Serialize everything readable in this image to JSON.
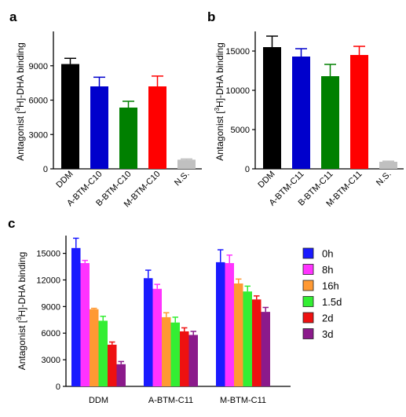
{
  "chart_data": [
    {
      "panel": "a",
      "type": "bar",
      "ylabel": "Antagonist [3H]-DHA binding",
      "ylim": [
        0,
        12000
      ],
      "yticks": [
        0,
        3000,
        6000,
        9000
      ],
      "categories": [
        "DDM",
        "A-BTM-C10",
        "B-BTM-C10",
        "M-BTM-C10",
        "N.S."
      ],
      "values": [
        9150,
        7200,
        5350,
        7200,
        800
      ],
      "errors": [
        500,
        800,
        550,
        900,
        60
      ],
      "colors": [
        "#000000",
        "#0000cc",
        "#008000",
        "#ff0000",
        "#c0c0c0"
      ]
    },
    {
      "panel": "b",
      "type": "bar",
      "ylabel": "Antagonist [3H]-DHA binding",
      "ylim": [
        0,
        17500
      ],
      "yticks": [
        0,
        5000,
        10000,
        15000
      ],
      "categories": [
        "DDM",
        "A-BTM-C11",
        "B-BTM-C11",
        "M-BTM-C11",
        "N.S."
      ],
      "values": [
        15500,
        14300,
        11800,
        14500,
        900
      ],
      "errors": [
        1400,
        1000,
        1500,
        1100,
        80
      ],
      "colors": [
        "#000000",
        "#0000cc",
        "#008000",
        "#ff0000",
        "#c0c0c0"
      ]
    },
    {
      "panel": "c",
      "type": "bar",
      "ylabel": "Antagonist [3H]-DHA binding",
      "ylim": [
        0,
        17000
      ],
      "yticks": [
        0,
        3000,
        6000,
        9000,
        12000,
        15000
      ],
      "categories": [
        "DDM",
        "A-BTM-C11",
        "M-BTM-C11"
      ],
      "series": [
        {
          "name": "0h",
          "color": "#1a1aff",
          "values": [
            15600,
            12200,
            14000
          ],
          "errors": [
            1100,
            900,
            1400
          ]
        },
        {
          "name": "8h",
          "color": "#ff33ff",
          "values": [
            13900,
            11000,
            13900
          ],
          "errors": [
            300,
            500,
            900
          ]
        },
        {
          "name": "16h",
          "color": "#ff9933",
          "values": [
            8700,
            7800,
            11600
          ],
          "errors": [
            100,
            500,
            500
          ]
        },
        {
          "name": "1.5d",
          "color": "#33ee33",
          "values": [
            7400,
            7200,
            10700
          ],
          "errors": [
            500,
            600,
            600
          ]
        },
        {
          "name": "2d",
          "color": "#ee1111",
          "values": [
            4700,
            6200,
            9800
          ],
          "errors": [
            300,
            400,
            400
          ]
        },
        {
          "name": "3d",
          "color": "#8b1a8b",
          "values": [
            2500,
            5800,
            8400
          ],
          "errors": [
            300,
            400,
            500
          ]
        }
      ]
    }
  ]
}
